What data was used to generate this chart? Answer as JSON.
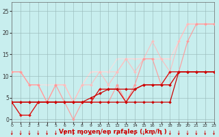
{
  "xlabel": "Vent moyen/en rafales ( km/h )",
  "xlim": [
    0,
    23
  ],
  "ylim": [
    -0.5,
    27
  ],
  "xticks": [
    0,
    1,
    2,
    3,
    4,
    5,
    6,
    7,
    8,
    9,
    10,
    11,
    12,
    13,
    14,
    15,
    16,
    17,
    18,
    19,
    20,
    21,
    22,
    23
  ],
  "yticks": [
    0,
    5,
    10,
    15,
    20,
    25
  ],
  "bg_color": "#c8eeee",
  "grid_color": "#99bbbb",
  "lines": [
    {
      "x": [
        0,
        1,
        2,
        3,
        4,
        5,
        6,
        7,
        8,
        9,
        10,
        11,
        12,
        13,
        14,
        15,
        16,
        17,
        18,
        19,
        20,
        21,
        22,
        23
      ],
      "y": [
        4,
        4,
        4,
        4,
        4,
        4,
        4,
        4,
        4,
        4,
        4,
        4,
        4,
        4,
        4,
        4,
        4,
        4,
        4,
        11,
        11,
        11,
        11,
        11
      ],
      "color": "#cc0000",
      "lw": 0.9,
      "marker": "D",
      "ms": 2.0,
      "alpha": 1.0,
      "zorder": 5
    },
    {
      "x": [
        0,
        1,
        2,
        3,
        4,
        5,
        6,
        7,
        8,
        9,
        10,
        11,
        12,
        13,
        14,
        15,
        16,
        17,
        18,
        19,
        20,
        21,
        22,
        23
      ],
      "y": [
        4,
        4,
        4,
        4,
        4,
        4,
        4,
        4,
        4,
        5,
        6,
        7,
        7,
        7,
        7,
        8,
        8,
        8,
        8,
        11,
        11,
        11,
        11,
        11
      ],
      "color": "#cc0000",
      "lw": 0.9,
      "marker": "D",
      "ms": 2.0,
      "alpha": 1.0,
      "zorder": 5
    },
    {
      "x": [
        0,
        1,
        2,
        3,
        4,
        5,
        6,
        7,
        8,
        9,
        10,
        11,
        12,
        13,
        14,
        15,
        16,
        17,
        18,
        19,
        20,
        21,
        22,
        23
      ],
      "y": [
        4,
        1,
        1,
        4,
        4,
        4,
        4,
        4,
        4,
        4,
        7,
        7,
        7,
        4,
        7,
        8,
        8,
        8,
        11,
        11,
        11,
        11,
        11,
        11
      ],
      "color": "#dd1111",
      "lw": 1.0,
      "marker": "D",
      "ms": 2.0,
      "alpha": 1.0,
      "zorder": 4
    },
    {
      "x": [
        0,
        1,
        2,
        3,
        4,
        5,
        6,
        7,
        8,
        9,
        10,
        11,
        12,
        13,
        14,
        15,
        16,
        17,
        18,
        19,
        20,
        21,
        22,
        23
      ],
      "y": [
        11,
        11,
        8,
        8,
        4,
        8,
        4,
        0,
        4,
        4,
        4,
        4,
        8,
        4,
        8,
        14,
        14,
        8,
        8,
        11,
        18,
        22,
        22,
        22
      ],
      "color": "#ff9999",
      "lw": 0.9,
      "marker": "D",
      "ms": 2.0,
      "alpha": 0.9,
      "zorder": 3
    },
    {
      "x": [
        0,
        1,
        2,
        3,
        4,
        5,
        6,
        7,
        8,
        9,
        10,
        11,
        12,
        13,
        14,
        15,
        16,
        17,
        18,
        19,
        20,
        21,
        22,
        23
      ],
      "y": [
        11,
        11,
        8,
        8,
        4,
        8,
        8,
        4,
        8,
        8,
        11,
        8,
        11,
        14,
        11,
        14,
        18,
        14,
        11,
        18,
        22,
        22,
        22,
        22
      ],
      "color": "#ffbbbb",
      "lw": 0.9,
      "marker": "D",
      "ms": 2.0,
      "alpha": 0.85,
      "zorder": 2
    },
    {
      "x": [
        0,
        1,
        2,
        3,
        4,
        5,
        6,
        7,
        8,
        9,
        10,
        11,
        12,
        13,
        14,
        15,
        16,
        17,
        18,
        19,
        20,
        21,
        22,
        23
      ],
      "y": [
        11,
        11,
        8,
        8,
        4,
        8,
        8,
        4,
        8,
        11,
        11,
        11,
        11,
        14,
        14,
        14,
        14,
        14,
        14,
        18,
        22,
        22,
        22,
        22
      ],
      "color": "#ffcccc",
      "lw": 0.9,
      "marker": "D",
      "ms": 2.0,
      "alpha": 0.8,
      "zorder": 1
    },
    {
      "x": [
        0,
        1,
        2,
        3,
        4,
        5,
        6,
        7,
        8,
        9,
        10,
        11,
        12,
        13,
        14,
        15,
        16,
        17,
        18,
        19,
        20,
        21,
        22,
        23
      ],
      "y": [
        11,
        11,
        8,
        8,
        8,
        8,
        8,
        4,
        8,
        11,
        11,
        11,
        14,
        14,
        14,
        14,
        14,
        14,
        14,
        18,
        22,
        22,
        22,
        22
      ],
      "color": "#ffdddd",
      "lw": 0.9,
      "marker": "D",
      "ms": 2.0,
      "alpha": 0.75,
      "zorder": 1
    }
  ],
  "arrow_color": "#cc0000",
  "xlabel_color": "#cc0000",
  "xlabel_fontsize": 6.5
}
